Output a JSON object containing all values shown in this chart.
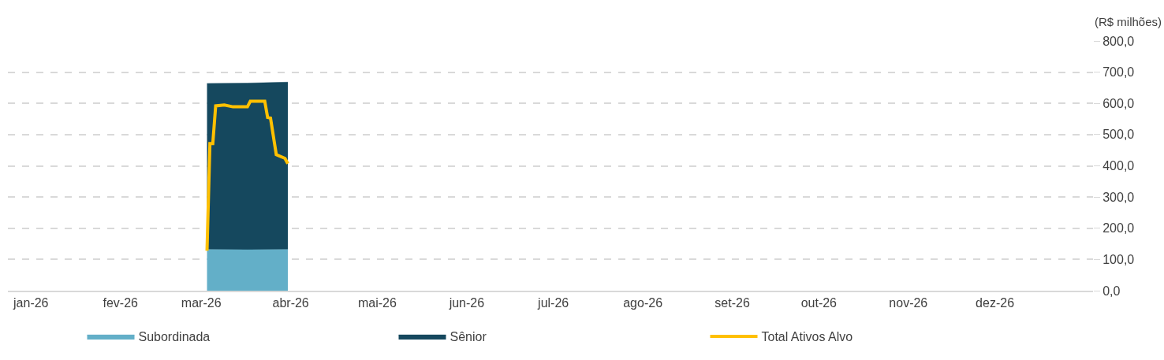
{
  "chart_data": {
    "type": "area",
    "stacked": true,
    "ylabel": "(R$ milhões)",
    "x": [
      "2026-03-03",
      "2026-03-17",
      "2026-03-31"
    ],
    "series": [
      {
        "name": "Subordinada",
        "color": "#63afc8",
        "values": [
          132,
          131,
          132
        ]
      },
      {
        "name": "Sênior",
        "color": "#15485e",
        "values": [
          532,
          534,
          536
        ]
      },
      {
        "name": "Total Ativos Alvo",
        "color": "#ffc000",
        "type": "line",
        "x": [
          "2026-03-03",
          "2026-03-04",
          "2026-03-05",
          "2026-03-06",
          "2026-03-09",
          "2026-03-12",
          "2026-03-17",
          "2026-03-18",
          "2026-03-23",
          "2026-03-24",
          "2026-03-25",
          "2026-03-27",
          "2026-03-30",
          "2026-03-31"
        ],
        "values": [
          128,
          471,
          471,
          592,
          595,
          589,
          589,
          607,
          607,
          555,
          553,
          436,
          424,
          407
        ]
      }
    ],
    "xlim": [
      "2025-12-24",
      "2027-01-04"
    ],
    "xticks": [
      {
        "value": "2026-01-01",
        "label": "jan-26"
      },
      {
        "value": "2026-02-01",
        "label": "fev-26"
      },
      {
        "value": "2026-03-01",
        "label": "mar-26"
      },
      {
        "value": "2026-04-01",
        "label": "abr-26"
      },
      {
        "value": "2026-05-01",
        "label": "mai-26"
      },
      {
        "value": "2026-06-01",
        "label": "jun-26"
      },
      {
        "value": "2026-07-01",
        "label": "jul-26"
      },
      {
        "value": "2026-08-01",
        "label": "ago-26"
      },
      {
        "value": "2026-09-01",
        "label": "set-26"
      },
      {
        "value": "2026-10-01",
        "label": "out-26"
      },
      {
        "value": "2026-11-01",
        "label": "nov-26"
      },
      {
        "value": "2026-12-01",
        "label": "dez-26"
      }
    ],
    "ylim": [
      0,
      800
    ],
    "yticks": [
      {
        "value": 0,
        "label": "0,0"
      },
      {
        "value": 100,
        "label": "100,0"
      },
      {
        "value": 200,
        "label": "200,0"
      },
      {
        "value": 300,
        "label": "300,0"
      },
      {
        "value": 400,
        "label": "400,0"
      },
      {
        "value": 500,
        "label": "500,0"
      },
      {
        "value": 600,
        "label": "600,0"
      },
      {
        "value": 700,
        "label": "700,0"
      },
      {
        "value": 800,
        "label": "800,0"
      }
    ],
    "grid": "y",
    "legend": "bottom",
    "line_style": "solid",
    "marker": "none"
  }
}
